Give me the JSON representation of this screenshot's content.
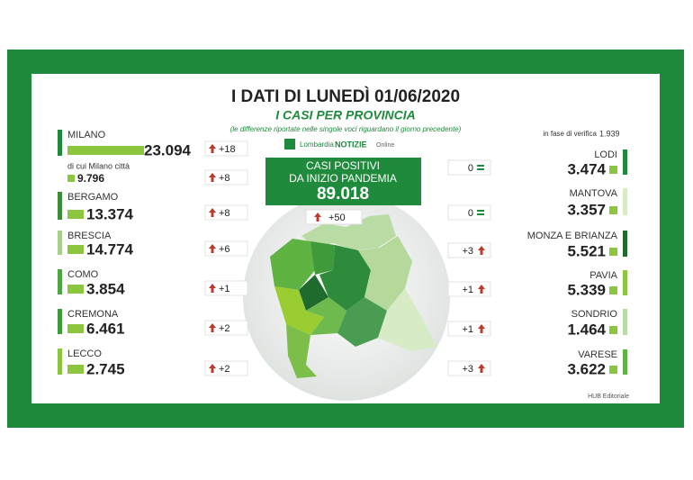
{
  "header": {
    "title": "I DATI DI LUNEDÌ 01/06/2020",
    "subtitle": "I CASI PER PROVINCIA",
    "note": "(le differenze riportate nelle singole voci riguardano il giorno precedente)",
    "logo_main": "Lombardia",
    "logo_brand": "NOTIZIE",
    "logo_tail": "Online"
  },
  "total": {
    "line1": "CASI POSITIVI",
    "line2": "DA INIZIO PANDEMIA",
    "value": "89.018",
    "diff": "+50"
  },
  "pending": {
    "label": "in fase di verifica",
    "value": "1.939"
  },
  "left": [
    {
      "name": "MILANO",
      "value": "23.094",
      "diff": "+18"
    },
    {
      "name": "BERGAMO",
      "value": "13.374",
      "diff": "+8"
    },
    {
      "name": "BRESCIA",
      "value": "14.774",
      "diff": "+6"
    },
    {
      "name": "COMO",
      "value": "3.854",
      "diff": "+1"
    },
    {
      "name": "CREMONA",
      "value": "6.461",
      "diff": "+2"
    },
    {
      "name": "LECCO",
      "value": "2.745",
      "diff": "+2"
    }
  ],
  "milano_city": {
    "label": "di cui Milano città",
    "value": "9.796",
    "diff": "+8"
  },
  "right": [
    {
      "name": "LODI",
      "value": "3.474",
      "diff": "0"
    },
    {
      "name": "MANTOVA",
      "value": "3.357",
      "diff": "0"
    },
    {
      "name": "MONZA E BRIANZA",
      "value": "5.521",
      "diff": "+3"
    },
    {
      "name": "PAVIA",
      "value": "5.339",
      "diff": "+1"
    },
    {
      "name": "SONDRIO",
      "value": "1.464",
      "diff": "+1"
    },
    {
      "name": "VARESE",
      "value": "3.622",
      "diff": "+3"
    }
  ],
  "credit": "HUB Editoriale"
}
